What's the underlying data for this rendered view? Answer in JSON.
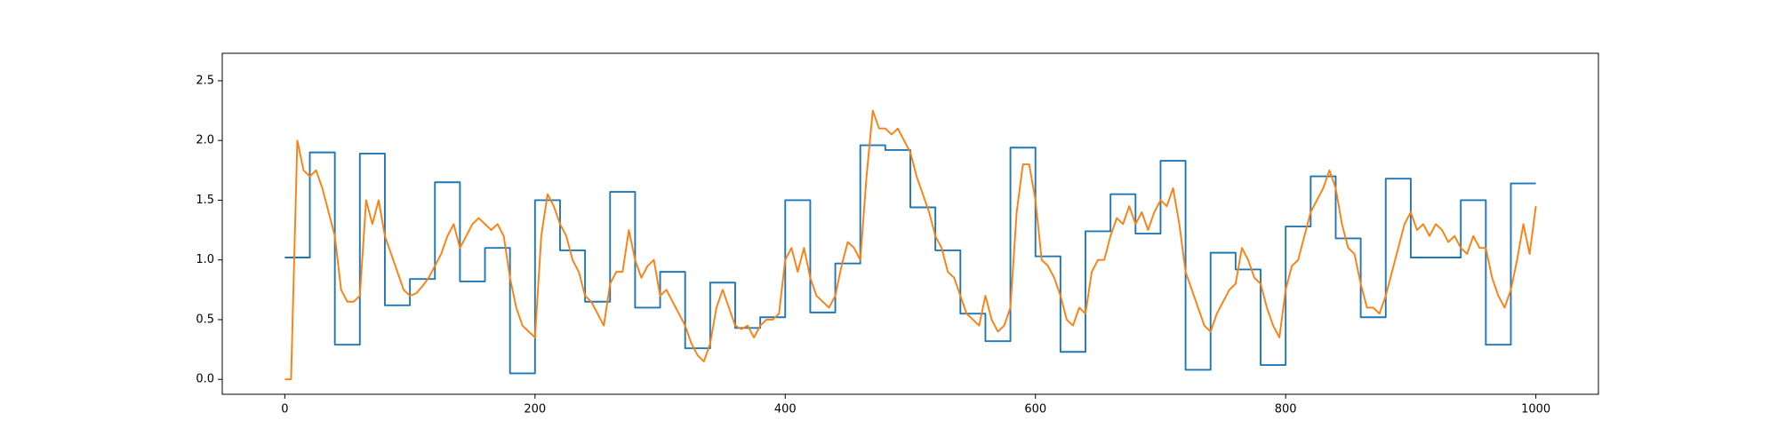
{
  "chart_data": {
    "type": "line",
    "xlim": [
      -50,
      1050
    ],
    "ylim": [
      -0.125,
      2.73
    ],
    "xticks": [
      0,
      200,
      400,
      600,
      800,
      1000
    ],
    "yticks": [
      {
        "value": 0,
        "label": "0.0"
      },
      0.5,
      {
        "value": 1,
        "label": "1.0"
      },
      1.5,
      {
        "value": 2,
        "label": "2.0"
      },
      2.5
    ],
    "grid": false,
    "series": [
      {
        "color": "#1f77b4",
        "step": "post",
        "x": [
          0,
          20,
          40,
          60,
          80,
          100,
          120,
          140,
          160,
          180,
          200,
          220,
          240,
          260,
          280,
          300,
          320,
          340,
          360,
          380,
          400,
          420,
          440,
          460,
          480,
          500,
          520,
          540,
          560,
          580,
          600,
          620,
          640,
          660,
          680,
          700,
          720,
          740,
          760,
          780,
          800,
          820,
          840,
          860,
          880,
          900,
          920,
          940,
          960,
          980,
          1000
        ],
        "values": [
          1.02,
          1.9,
          0.29,
          1.89,
          0.62,
          0.84,
          1.65,
          0.82,
          1.1,
          0.05,
          1.5,
          1.08,
          0.65,
          1.57,
          0.6,
          0.9,
          0.26,
          0.81,
          0.43,
          0.52,
          1.5,
          0.56,
          0.97,
          1.96,
          1.92,
          1.44,
          1.08,
          0.55,
          0.32,
          1.94,
          1.03,
          0.23,
          1.24,
          1.55,
          1.22,
          1.83,
          0.08,
          1.06,
          0.92,
          0.12,
          1.28,
          1.7,
          1.18,
          0.52,
          1.68,
          1.02,
          1.02,
          1.5,
          0.29,
          1.64,
          1.64
        ]
      },
      {
        "color": "#ff7f0e",
        "x": [
          0,
          5,
          10,
          15,
          20,
          25,
          30,
          35,
          40,
          45,
          50,
          55,
          60,
          65,
          70,
          75,
          80,
          85,
          90,
          95,
          100,
          105,
          110,
          115,
          120,
          125,
          130,
          135,
          140,
          145,
          150,
          155,
          160,
          165,
          170,
          175,
          180,
          185,
          190,
          195,
          200,
          205,
          210,
          215,
          220,
          225,
          230,
          235,
          240,
          245,
          250,
          255,
          260,
          265,
          270,
          275,
          280,
          285,
          290,
          295,
          300,
          305,
          310,
          315,
          320,
          325,
          330,
          335,
          340,
          345,
          350,
          355,
          360,
          365,
          370,
          375,
          380,
          385,
          390,
          395,
          400,
          405,
          410,
          415,
          420,
          425,
          430,
          435,
          440,
          445,
          450,
          455,
          460,
          465,
          470,
          475,
          480,
          485,
          490,
          495,
          500,
          505,
          510,
          515,
          520,
          525,
          530,
          535,
          540,
          545,
          550,
          555,
          560,
          565,
          570,
          575,
          580,
          585,
          590,
          595,
          600,
          605,
          610,
          615,
          620,
          625,
          630,
          635,
          640,
          645,
          650,
          655,
          660,
          665,
          670,
          675,
          680,
          685,
          690,
          695,
          700,
          705,
          710,
          715,
          720,
          725,
          730,
          735,
          740,
          745,
          750,
          755,
          760,
          765,
          770,
          775,
          780,
          785,
          790,
          795,
          800,
          805,
          810,
          815,
          820,
          825,
          830,
          835,
          840,
          845,
          850,
          855,
          860,
          865,
          870,
          875,
          880,
          885,
          890,
          895,
          900,
          905,
          910,
          915,
          920,
          925,
          930,
          935,
          940,
          945,
          950,
          955,
          960,
          965,
          970,
          975,
          980,
          985,
          990,
          995,
          1000
        ],
        "values": [
          0,
          0,
          2.0,
          1.75,
          1.7,
          1.75,
          1.6,
          1.4,
          1.2,
          0.75,
          0.65,
          0.65,
          0.7,
          1.5,
          1.3,
          1.5,
          1.2,
          1.05,
          0.9,
          0.75,
          0.7,
          0.72,
          0.78,
          0.85,
          0.95,
          1.05,
          1.2,
          1.3,
          1.1,
          1.2,
          1.3,
          1.35,
          1.3,
          1.25,
          1.3,
          1.2,
          0.85,
          0.6,
          0.45,
          0.4,
          0.35,
          1.2,
          1.55,
          1.45,
          1.3,
          1.2,
          1.0,
          0.9,
          0.7,
          0.65,
          0.55,
          0.45,
          0.8,
          0.9,
          0.9,
          1.25,
          1.0,
          0.85,
          0.95,
          1.0,
          0.7,
          0.75,
          0.65,
          0.55,
          0.45,
          0.3,
          0.2,
          0.15,
          0.3,
          0.6,
          0.75,
          0.6,
          0.45,
          0.42,
          0.45,
          0.35,
          0.45,
          0.5,
          0.5,
          0.55,
          1.0,
          1.1,
          0.9,
          1.1,
          0.85,
          0.7,
          0.65,
          0.6,
          0.7,
          0.95,
          1.15,
          1.1,
          1.0,
          1.7,
          2.25,
          2.1,
          2.1,
          2.05,
          2.1,
          2.0,
          1.9,
          1.7,
          1.55,
          1.4,
          1.2,
          1.1,
          0.9,
          0.85,
          0.7,
          0.55,
          0.5,
          0.45,
          0.7,
          0.5,
          0.4,
          0.45,
          0.6,
          1.4,
          1.8,
          1.8,
          1.5,
          1.0,
          0.95,
          0.85,
          0.7,
          0.5,
          0.45,
          0.6,
          0.55,
          0.9,
          1.0,
          1.0,
          1.2,
          1.35,
          1.3,
          1.45,
          1.3,
          1.4,
          1.25,
          1.4,
          1.5,
          1.45,
          1.6,
          1.3,
          0.9,
          0.75,
          0.6,
          0.45,
          0.4,
          0.55,
          0.65,
          0.75,
          0.8,
          1.1,
          1.0,
          0.85,
          0.8,
          0.6,
          0.45,
          0.35,
          0.75,
          0.95,
          1.0,
          1.2,
          1.4,
          1.5,
          1.6,
          1.75,
          1.6,
          1.3,
          1.1,
          1.05,
          0.8,
          0.6,
          0.6,
          0.55,
          0.7,
          0.9,
          1.1,
          1.3,
          1.4,
          1.25,
          1.3,
          1.2,
          1.3,
          1.25,
          1.15,
          1.2,
          1.1,
          1.05,
          1.2,
          1.1,
          1.1,
          0.85,
          0.7,
          0.6,
          0.75,
          1.0,
          1.3,
          1.05,
          1.45
        ]
      }
    ]
  }
}
